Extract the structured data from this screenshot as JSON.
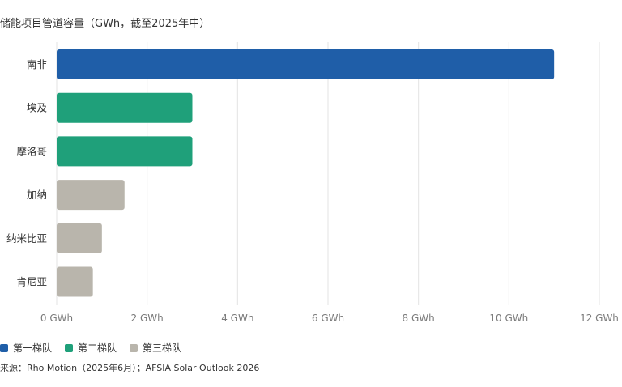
{
  "chart_data": {
    "type": "bar",
    "orientation": "horizontal",
    "title": "储能项目管道容量（GWh，截至2025年中）",
    "categories": [
      "南非",
      "埃及",
      "摩洛哥",
      "加纳",
      "纳米比亚",
      "肯尼亚"
    ],
    "values": [
      11,
      3,
      3,
      1.5,
      1,
      0.8
    ],
    "tiers": [
      "第一梯队",
      "第二梯队",
      "第二梯队",
      "第三梯队",
      "第三梯队",
      "第三梯队"
    ],
    "x_ticks": [
      "0 GWh",
      "2 GWh",
      "4 GWh",
      "6 GWh",
      "8 GWh",
      "10 GWh",
      "12 GWh"
    ],
    "xlim": [
      0,
      12
    ],
    "grid": true,
    "legend": [
      {
        "label": "第一梯队",
        "color": "#1f5ea8"
      },
      {
        "label": "第二梯队",
        "color": "#1fa07a"
      },
      {
        "label": "第三梯队",
        "color": "#b9b5ac"
      }
    ],
    "legend_position": "bottom-left",
    "source": "来源：Rho Motion（2025年6月）；AFSIA Solar Outlook 2026"
  }
}
